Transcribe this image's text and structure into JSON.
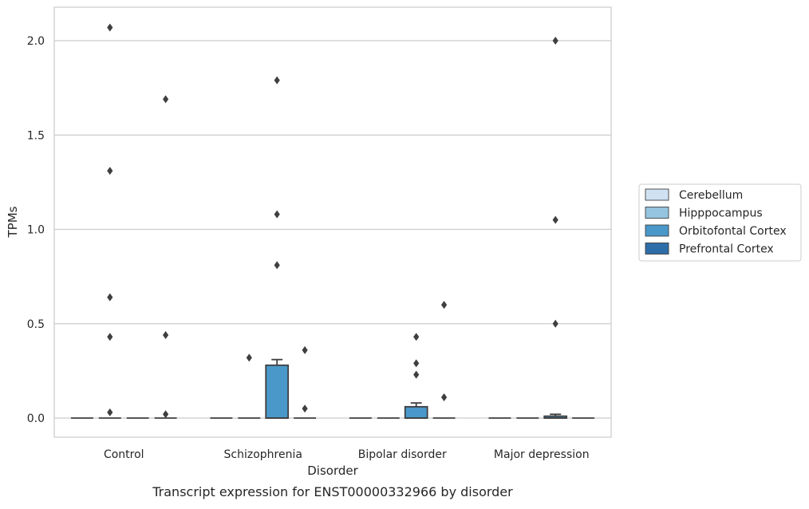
{
  "chart_data": {
    "type": "boxplot",
    "caption": "Transcript expression for ENST00000332966 by disorder",
    "xlabel": "Disorder",
    "ylabel": "TPMs",
    "ylim": [
      -0.1,
      2.18
    ],
    "yticks": [
      {
        "value": 0.0,
        "label": "0.0"
      },
      {
        "value": 0.5,
        "label": "0.5"
      },
      {
        "value": 1.0,
        "label": "1.0"
      },
      {
        "value": 1.5,
        "label": "1.5"
      },
      {
        "value": 2.0,
        "label": "2.0"
      }
    ],
    "grid": "horizontal",
    "legend_position": "right",
    "categories": [
      "Control",
      "Schizophrenia",
      "Bipolar disorder",
      "Major depression"
    ],
    "series": [
      {
        "name": "Cerebellum",
        "color": "#d0e1f2",
        "boxes": [
          {
            "q1": 0,
            "median": 0,
            "q3": 0,
            "whisker_low": 0,
            "whisker_high": 0,
            "fliers": []
          },
          {
            "q1": 0,
            "median": 0,
            "q3": 0,
            "whisker_low": 0,
            "whisker_high": 0,
            "fliers": []
          },
          {
            "q1": 0,
            "median": 0,
            "q3": 0,
            "whisker_low": 0,
            "whisker_high": 0,
            "fliers": []
          },
          {
            "q1": 0,
            "median": 0,
            "q3": 0,
            "whisker_low": 0,
            "whisker_high": 0,
            "fliers": []
          }
        ]
      },
      {
        "name": "Hipppocampus",
        "color": "#94c4df",
        "boxes": [
          {
            "q1": 0,
            "median": 0,
            "q3": 0,
            "whisker_low": 0,
            "whisker_high": 0,
            "fliers": [
              0.03,
              0.43,
              0.64,
              1.31,
              2.07
            ]
          },
          {
            "q1": 0,
            "median": 0,
            "q3": 0,
            "whisker_low": 0,
            "whisker_high": 0,
            "fliers": [
              0.32
            ]
          },
          {
            "q1": 0,
            "median": 0,
            "q3": 0,
            "whisker_low": 0,
            "whisker_high": 0,
            "fliers": []
          },
          {
            "q1": 0,
            "median": 0,
            "q3": 0,
            "whisker_low": 0,
            "whisker_high": 0,
            "fliers": []
          }
        ]
      },
      {
        "name": "Orbitofontal Cortex",
        "color": "#4a98c9",
        "boxes": [
          {
            "q1": 0,
            "median": 0,
            "q3": 0,
            "whisker_low": 0,
            "whisker_high": 0,
            "fliers": []
          },
          {
            "q1": 0,
            "median": 0,
            "q3": 0.28,
            "whisker_low": 0,
            "whisker_high": 0.31,
            "fliers": [
              0.81,
              1.08,
              1.79
            ]
          },
          {
            "q1": 0,
            "median": 0,
            "q3": 0.06,
            "whisker_low": 0,
            "whisker_high": 0.08,
            "fliers": [
              0.23,
              0.29,
              0.43
            ]
          },
          {
            "q1": 0,
            "median": 0,
            "q3": 0.01,
            "whisker_low": 0,
            "whisker_high": 0.02,
            "fliers": [
              0.5,
              1.05,
              2.0
            ]
          }
        ]
      },
      {
        "name": "Prefrontal Cortex",
        "color": "#2e6ea8",
        "boxes": [
          {
            "q1": 0,
            "median": 0,
            "q3": 0,
            "whisker_low": 0,
            "whisker_high": 0,
            "fliers": [
              0.02,
              0.44,
              1.69
            ]
          },
          {
            "q1": 0,
            "median": 0,
            "q3": 0,
            "whisker_low": 0,
            "whisker_high": 0,
            "fliers": [
              0.05,
              0.36
            ]
          },
          {
            "q1": 0,
            "median": 0,
            "q3": 0,
            "whisker_low": 0,
            "whisker_high": 0,
            "fliers": [
              0.11,
              0.6
            ]
          },
          {
            "q1": 0,
            "median": 0,
            "q3": 0,
            "whisker_low": 0,
            "whisker_high": 0,
            "fliers": []
          }
        ]
      }
    ]
  }
}
